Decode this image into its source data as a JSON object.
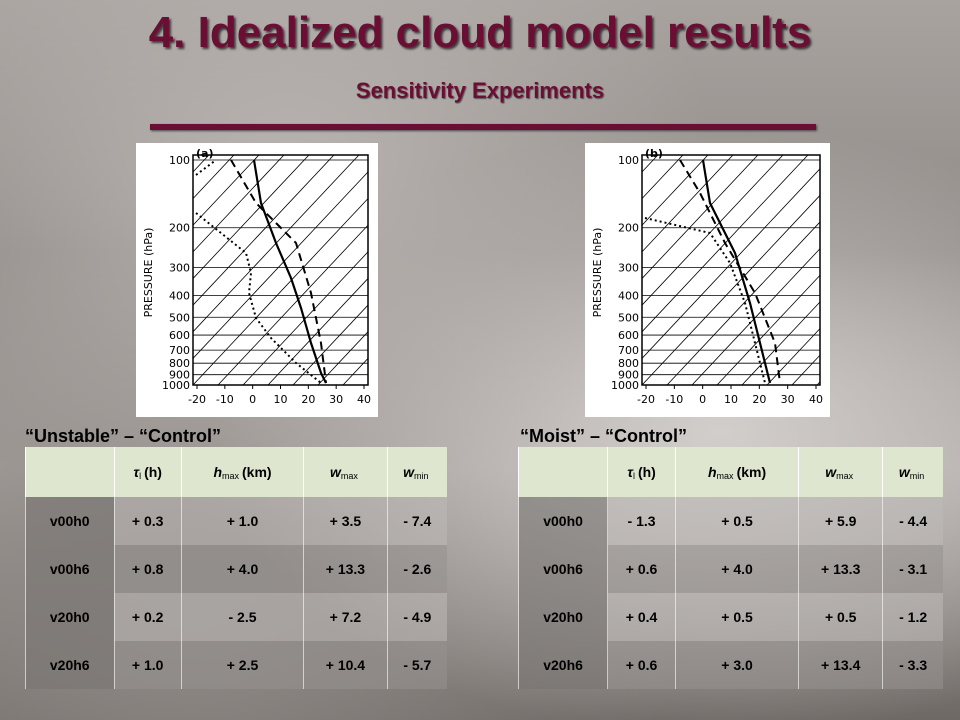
{
  "header": {
    "title": "4. Idealized cloud model results",
    "subtitle": "Sensitivity Experiments"
  },
  "diagrams": [
    {
      "panel": "(a)",
      "axis_label": "PRESSURE (hPa)",
      "pressure_ticks": [
        100,
        200,
        300,
        400,
        500,
        600,
        700,
        800,
        900,
        1000
      ],
      "temperature_ticks": [
        -20,
        -10,
        0,
        10,
        20,
        30,
        40
      ]
    },
    {
      "panel": "(b)",
      "axis_label": "PRESSURE (hPa)",
      "pressure_ticks": [
        100,
        200,
        300,
        400,
        500,
        600,
        700,
        800,
        900,
        1000
      ],
      "temperature_ticks": [
        -20,
        -10,
        0,
        10,
        20,
        30,
        40
      ]
    }
  ],
  "tables": [
    {
      "caption": "“Unstable” – “Control”",
      "header": [
        {
          "main": "τ",
          "sub": "l",
          "rest": "(h)"
        },
        {
          "main": "h",
          "sub": "max",
          "rest": "(km)"
        },
        {
          "main": "w",
          "sub": "max"
        },
        {
          "main": "w",
          "sub": "min"
        }
      ],
      "rows": [
        [
          "v00h0",
          "+ 0.3",
          "+ 1.0",
          "+ 3.5",
          "- 7.4"
        ],
        [
          "v00h6",
          "+ 0.8",
          "+ 4.0",
          "+ 13.3",
          "- 2.6"
        ],
        [
          "v20h0",
          "+ 0.2",
          "- 2.5",
          "+ 7.2",
          "- 4.9"
        ],
        [
          "v20h6",
          "+ 1.0",
          "+ 2.5",
          "+ 10.4",
          "- 5.7"
        ]
      ]
    },
    {
      "caption": "“Moist” – “Control”",
      "header": [
        {
          "main": "τ",
          "sub": "l",
          "rest": "(h)"
        },
        {
          "main": "h",
          "sub": "max",
          "rest": "(km)"
        },
        {
          "main": "w",
          "sub": "max"
        },
        {
          "main": "w",
          "sub": "min"
        }
      ],
      "rows": [
        [
          "v00h0",
          "- 1.3",
          "+ 0.5",
          "+ 5.9",
          "- 4.4"
        ],
        [
          "v00h6",
          "+ 0.6",
          "+ 4.0",
          "+ 13.3",
          "- 3.1"
        ],
        [
          "v20h0",
          "+ 0.4",
          "+ 0.5",
          "+ 0.5",
          "- 1.2"
        ],
        [
          "v20h6",
          "+ 0.6",
          "+ 3.0",
          "+ 13.4",
          "- 3.3"
        ]
      ]
    }
  ]
}
